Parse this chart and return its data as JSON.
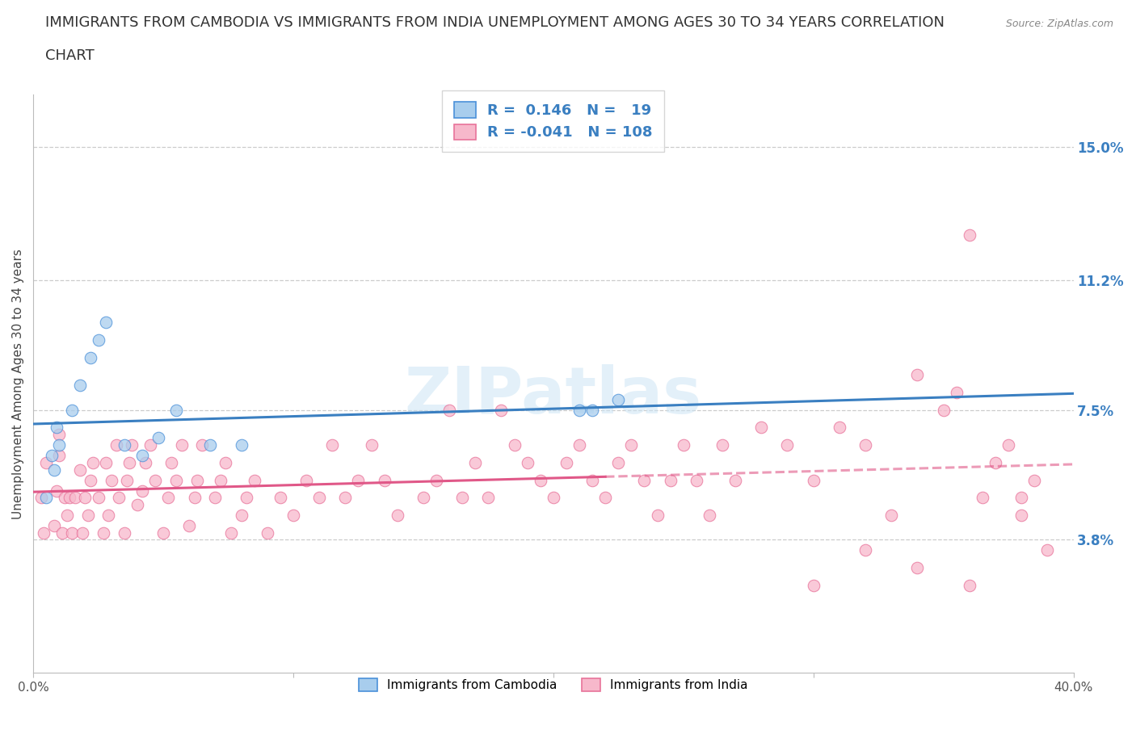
{
  "title_line1": "IMMIGRANTS FROM CAMBODIA VS IMMIGRANTS FROM INDIA UNEMPLOYMENT AMONG AGES 30 TO 34 YEARS CORRELATION",
  "title_line2": "CHART",
  "source_text": "Source: ZipAtlas.com",
  "ylabel": "Unemployment Among Ages 30 to 34 years",
  "xlim": [
    0.0,
    0.4
  ],
  "ylim": [
    0.0,
    0.165
  ],
  "right_yticks": [
    0.038,
    0.075,
    0.112,
    0.15
  ],
  "right_yticklabels": [
    "3.8%",
    "7.5%",
    "11.2%",
    "15.0%"
  ],
  "xtick_positions": [
    0.0,
    0.1,
    0.2,
    0.3,
    0.4
  ],
  "xtick_labels": [
    "0.0%",
    "",
    "",
    "",
    "40.0%"
  ],
  "cambodia_R": 0.146,
  "cambodia_N": 19,
  "india_R": -0.041,
  "india_N": 108,
  "cambodia_color": "#A8CDED",
  "india_color": "#F7B8CB",
  "cambodia_edge_color": "#4A90D9",
  "india_edge_color": "#E8739A",
  "cambodia_line_color": "#3A7FC1",
  "india_line_color": "#E05888",
  "right_tick_color": "#3A7FC1",
  "background_color": "#ffffff",
  "grid_color": "#cccccc",
  "title_fontsize": 13,
  "axis_label_fontsize": 11,
  "tick_fontsize": 11,
  "legend_fontsize": 13,
  "watermark_text": "ZIPatlas",
  "cambodia_x": [
    0.005,
    0.007,
    0.008,
    0.009,
    0.01,
    0.015,
    0.018,
    0.022,
    0.025,
    0.028,
    0.035,
    0.042,
    0.048,
    0.055,
    0.068,
    0.08,
    0.21,
    0.215,
    0.225
  ],
  "cambodia_y": [
    0.05,
    0.062,
    0.058,
    0.07,
    0.065,
    0.075,
    0.082,
    0.09,
    0.095,
    0.1,
    0.065,
    0.062,
    0.067,
    0.075,
    0.065,
    0.065,
    0.075,
    0.075,
    0.078
  ],
  "india_x": [
    0.003,
    0.004,
    0.005,
    0.008,
    0.009,
    0.01,
    0.01,
    0.011,
    0.012,
    0.013,
    0.014,
    0.015,
    0.016,
    0.018,
    0.019,
    0.02,
    0.021,
    0.022,
    0.023,
    0.025,
    0.027,
    0.028,
    0.029,
    0.03,
    0.032,
    0.033,
    0.035,
    0.036,
    0.037,
    0.038,
    0.04,
    0.042,
    0.043,
    0.045,
    0.047,
    0.05,
    0.052,
    0.053,
    0.055,
    0.057,
    0.06,
    0.062,
    0.063,
    0.065,
    0.07,
    0.072,
    0.074,
    0.076,
    0.08,
    0.082,
    0.085,
    0.09,
    0.095,
    0.1,
    0.105,
    0.11,
    0.115,
    0.12,
    0.125,
    0.13,
    0.135,
    0.14,
    0.15,
    0.155,
    0.16,
    0.165,
    0.17,
    0.175,
    0.18,
    0.185,
    0.19,
    0.195,
    0.2,
    0.205,
    0.21,
    0.215,
    0.22,
    0.225,
    0.23,
    0.235,
    0.24,
    0.245,
    0.25,
    0.255,
    0.26,
    0.265,
    0.27,
    0.28,
    0.29,
    0.3,
    0.31,
    0.32,
    0.33,
    0.34,
    0.35,
    0.355,
    0.36,
    0.365,
    0.37,
    0.375,
    0.38,
    0.385,
    0.3,
    0.32,
    0.34,
    0.36,
    0.38,
    0.39
  ],
  "india_y": [
    0.05,
    0.04,
    0.06,
    0.042,
    0.052,
    0.062,
    0.068,
    0.04,
    0.05,
    0.045,
    0.05,
    0.04,
    0.05,
    0.058,
    0.04,
    0.05,
    0.045,
    0.055,
    0.06,
    0.05,
    0.04,
    0.06,
    0.045,
    0.055,
    0.065,
    0.05,
    0.04,
    0.055,
    0.06,
    0.065,
    0.048,
    0.052,
    0.06,
    0.065,
    0.055,
    0.04,
    0.05,
    0.06,
    0.055,
    0.065,
    0.042,
    0.05,
    0.055,
    0.065,
    0.05,
    0.055,
    0.06,
    0.04,
    0.045,
    0.05,
    0.055,
    0.04,
    0.05,
    0.045,
    0.055,
    0.05,
    0.065,
    0.05,
    0.055,
    0.065,
    0.055,
    0.045,
    0.05,
    0.055,
    0.075,
    0.05,
    0.06,
    0.05,
    0.075,
    0.065,
    0.06,
    0.055,
    0.05,
    0.06,
    0.065,
    0.055,
    0.05,
    0.06,
    0.065,
    0.055,
    0.045,
    0.055,
    0.065,
    0.055,
    0.045,
    0.065,
    0.055,
    0.07,
    0.065,
    0.055,
    0.07,
    0.065,
    0.045,
    0.085,
    0.075,
    0.08,
    0.125,
    0.05,
    0.06,
    0.065,
    0.05,
    0.055,
    0.025,
    0.035,
    0.03,
    0.025,
    0.045,
    0.035
  ]
}
